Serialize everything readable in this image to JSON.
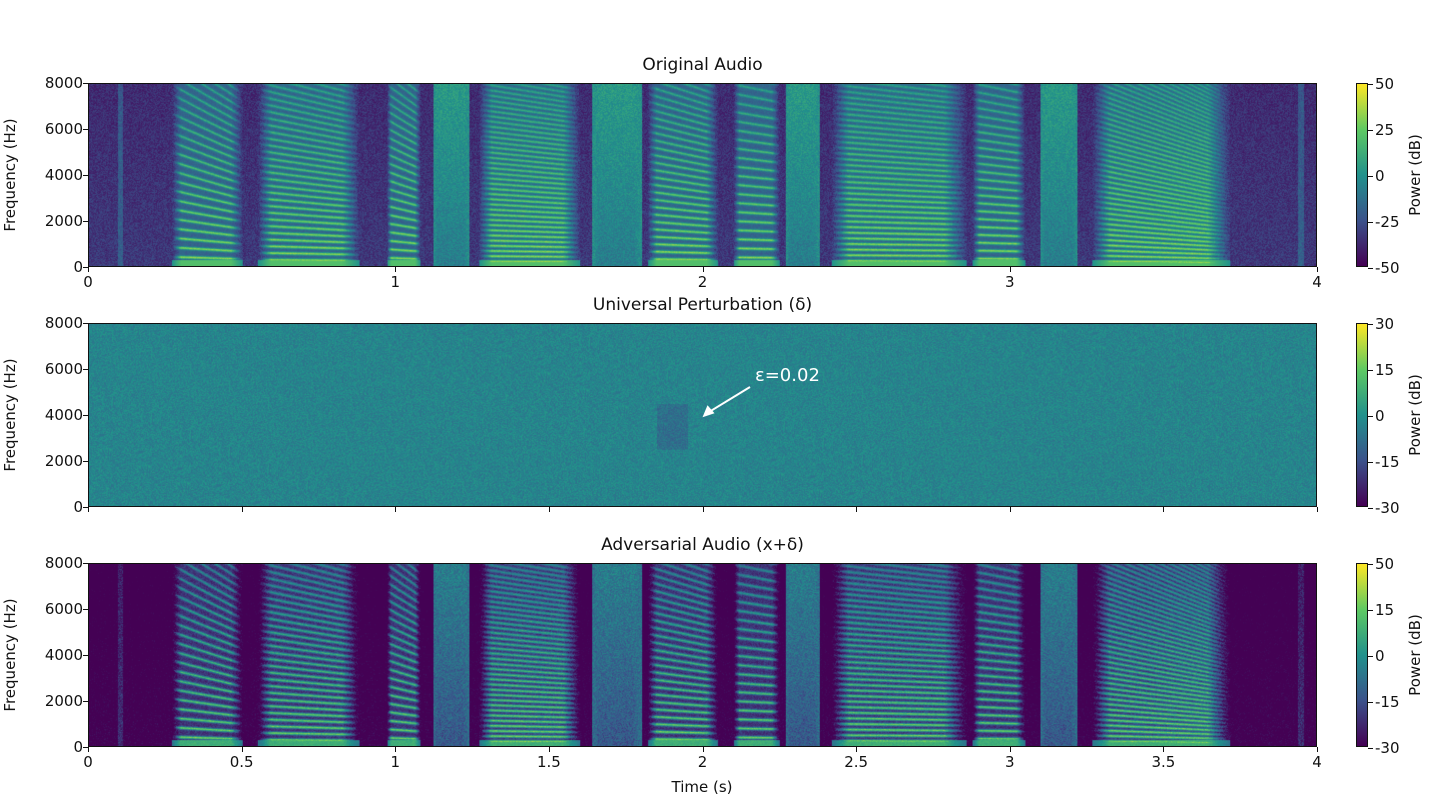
{
  "chart_data": {
    "type": "heatmap",
    "xlabel": "Time (s)",
    "panels": [
      {
        "title": "Original Audio",
        "ylabel": "Frequency (Hz)",
        "xlim": [
          0,
          4
        ],
        "ylim": [
          0,
          8000
        ],
        "xticks": [
          "0",
          "1",
          "2",
          "3",
          "4"
        ],
        "xtick_values": [
          0,
          1,
          2,
          3,
          4
        ],
        "yticks": [
          "0",
          "2000",
          "4000",
          "6000",
          "8000"
        ],
        "colorbar": {
          "label": "Power (dB)",
          "ticks": [
            "50",
            "25",
            "0",
            "-25",
            "-50"
          ],
          "range": [
            -50,
            50
          ],
          "colormap": "viridis"
        }
      },
      {
        "title": "Universal Perturbation (δ)",
        "ylabel": "Frequency (Hz)",
        "xlim": [
          0,
          4
        ],
        "ylim": [
          0,
          8000
        ],
        "xticks": [
          "",
          "",
          "",
          "",
          "",
          "",
          "",
          "",
          ""
        ],
        "xtick_values": [
          0,
          0.5,
          1,
          1.5,
          2,
          2.5,
          3,
          3.5,
          4
        ],
        "yticks": [
          "0",
          "2000",
          "4000",
          "6000",
          "8000"
        ],
        "colorbar": {
          "label": "Power (dB)",
          "ticks": [
            "30",
            "15",
            "0",
            "-15",
            "-30"
          ],
          "range": [
            -30,
            30
          ],
          "colormap": "viridis"
        },
        "annotation": {
          "text": "ε=0.02",
          "points_to": {
            "time": 2.0,
            "frequency": 3900
          }
        }
      },
      {
        "title": "Adversarial Audio (x+δ)",
        "ylabel": "Frequency (Hz)",
        "xlim": [
          0,
          4
        ],
        "ylim": [
          0,
          8000
        ],
        "xticks": [
          "0",
          "0.5",
          "1",
          "1.5",
          "2",
          "2.5",
          "3",
          "3.5",
          "4"
        ],
        "xtick_values": [
          0,
          0.5,
          1,
          1.5,
          2,
          2.5,
          3,
          3.5,
          4
        ],
        "yticks": [
          "0",
          "2000",
          "4000",
          "6000",
          "8000"
        ],
        "colorbar": {
          "label": "Power (dB)",
          "ticks": [
            "50",
            "15",
            "0",
            "-15",
            "-30"
          ],
          "range": [
            -30,
            50
          ],
          "colormap": "viridis"
        }
      }
    ]
  }
}
